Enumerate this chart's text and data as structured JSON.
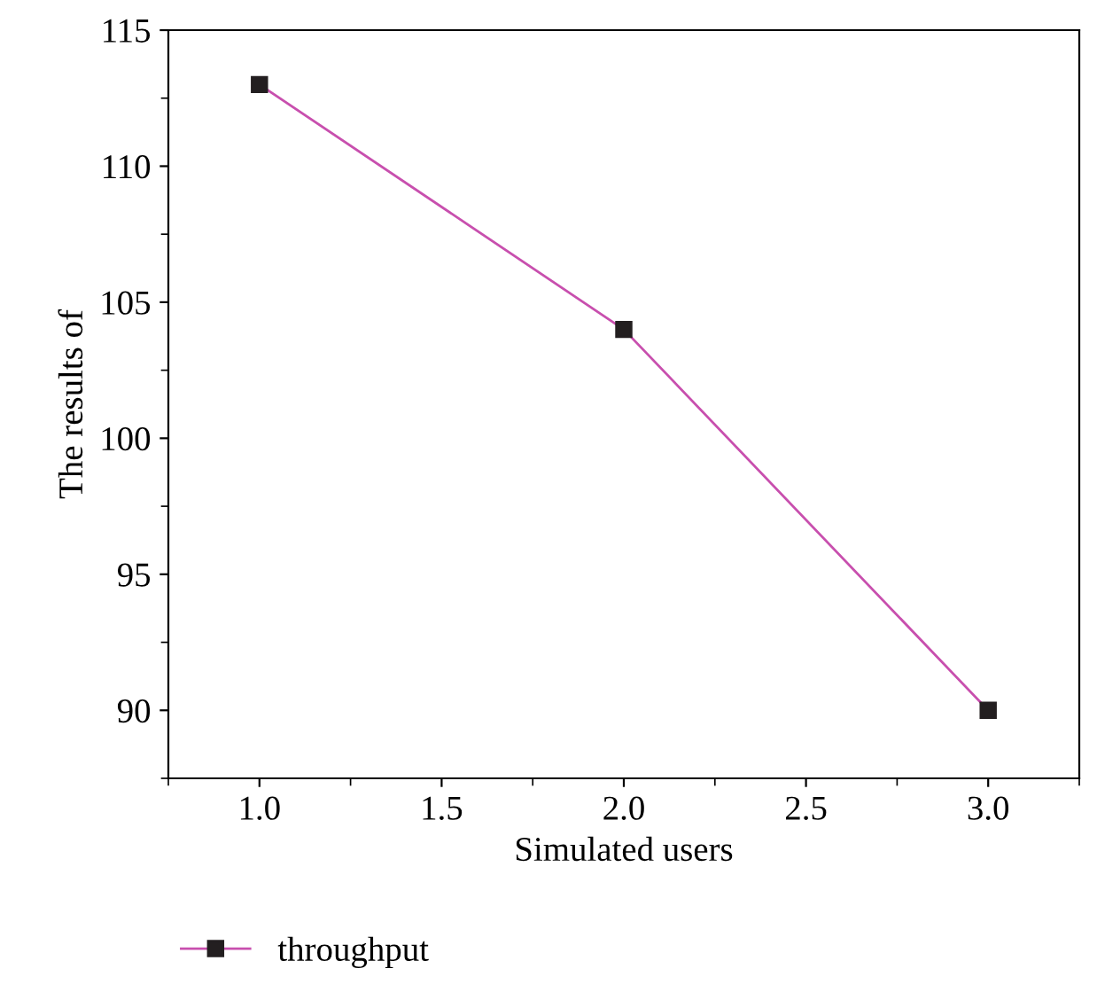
{
  "chart_data": {
    "type": "line",
    "xlabel": "Simulated users",
    "ylabel": "The results of",
    "x": [
      1.0,
      2.0,
      3.0
    ],
    "series": [
      {
        "name": "throughput",
        "color": "#c84fae",
        "values": [
          113,
          104,
          90
        ]
      }
    ],
    "xlim": [
      0.75,
      3.25
    ],
    "xticks": [
      {
        "value": 1.0,
        "label": "1.0"
      },
      {
        "value": 1.5,
        "label": "1.5"
      },
      {
        "value": 2.0,
        "label": "2.0"
      },
      {
        "value": 2.5,
        "label": "2.5"
      },
      {
        "value": 3.0,
        "label": "3.0"
      }
    ],
    "ylim": [
      87.5,
      115
    ],
    "yticks": [
      90,
      95,
      100,
      105,
      110,
      115
    ],
    "marker": "square",
    "legend": "bottom left",
    "grid": false
  }
}
